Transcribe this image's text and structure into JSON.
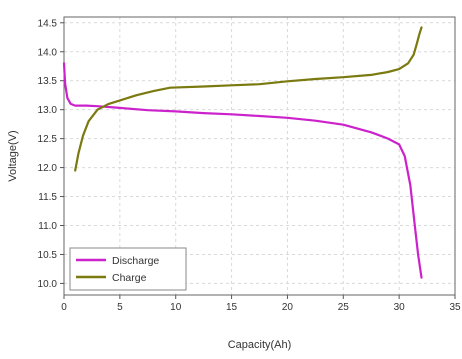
{
  "chart_data": {
    "type": "line",
    "title": "",
    "xlabel": "Capacity(Ah)",
    "ylabel": "Voltage(V)",
    "xlim": [
      0,
      35
    ],
    "ylim": [
      9.8,
      14.6
    ],
    "xticks": [
      0,
      5,
      10,
      15,
      20,
      25,
      30,
      35
    ],
    "yticks": [
      10.0,
      10.5,
      11.0,
      11.5,
      12.0,
      12.5,
      13.0,
      13.5,
      14.0,
      14.5
    ],
    "xtick_labels": [
      "0",
      "5",
      "10",
      "15",
      "20",
      "25",
      "30",
      "35"
    ],
    "ytick_labels": [
      "10.0",
      "10.5",
      "11.0",
      "11.5",
      "12.0",
      "12.5",
      "13.0",
      "13.5",
      "14.0",
      "14.5"
    ],
    "grid": true,
    "legend_position": "bottom-left",
    "series": [
      {
        "name": "Discharge",
        "color": "#cc22cc",
        "x": [
          0.0,
          0.1,
          0.3,
          0.6,
          1.0,
          2.0,
          3.0,
          5.0,
          7.5,
          10.0,
          12.5,
          15.0,
          17.5,
          20.0,
          22.5,
          25.0,
          27.5,
          29.0,
          30.0,
          30.5,
          31.0,
          31.4,
          31.7,
          32.0
        ],
        "y": [
          13.8,
          13.45,
          13.2,
          13.1,
          13.07,
          13.07,
          13.06,
          13.03,
          12.99,
          12.97,
          12.94,
          12.92,
          12.89,
          12.86,
          12.81,
          12.74,
          12.61,
          12.5,
          12.4,
          12.2,
          11.7,
          11.0,
          10.5,
          10.1
        ]
      },
      {
        "name": "Charge",
        "color": "#7a7a10",
        "x": [
          1.0,
          1.3,
          1.7,
          2.2,
          3.0,
          4.0,
          5.0,
          6.5,
          8.0,
          9.5,
          12.5,
          15.0,
          17.5,
          20.0,
          22.5,
          25.0,
          27.5,
          29.0,
          30.0,
          30.8,
          31.3,
          31.6,
          31.8,
          32.0
        ],
        "y": [
          11.95,
          12.25,
          12.55,
          12.8,
          13.0,
          13.1,
          13.16,
          13.25,
          13.32,
          13.38,
          13.4,
          13.42,
          13.44,
          13.49,
          13.53,
          13.56,
          13.6,
          13.65,
          13.7,
          13.8,
          13.95,
          14.15,
          14.3,
          14.42
        ]
      }
    ]
  }
}
